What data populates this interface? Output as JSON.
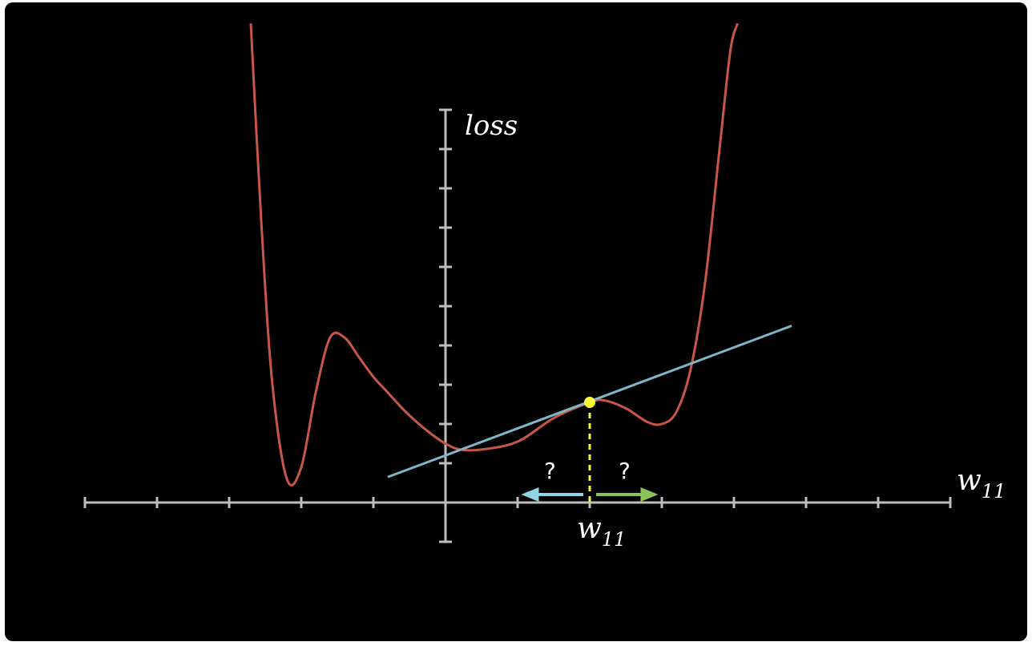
{
  "labels": {
    "y_axis": "loss",
    "x_axis": "w",
    "x_axis_sub": "11",
    "point": "w",
    "point_sub": "11",
    "question_left": "?",
    "question_right": "?"
  },
  "colors": {
    "background": "#000000",
    "curve": "#c9564a",
    "tangent": "#7fb6c9",
    "axis": "#bdbdbd",
    "point": "#ffff33",
    "arrow_left": "#8fd3e6",
    "arrow_right": "#8bc35a"
  },
  "chart_data": {
    "type": "line",
    "xlabel": "w11",
    "ylabel": "loss",
    "x_ticks": [
      -5,
      -4,
      -3,
      -2,
      -1,
      0,
      1,
      2,
      3,
      4,
      5,
      6,
      7
    ],
    "y_ticks": [
      1,
      2,
      3,
      4,
      5,
      6,
      7,
      8,
      9,
      10
    ],
    "curve": {
      "x": [
        -2.7,
        -2.55,
        -2.4,
        -2.2,
        -2.0,
        -1.8,
        -1.6,
        -1.4,
        -1.2,
        -1.0,
        -0.8,
        -0.6,
        -0.4,
        -0.2,
        0.0,
        0.2,
        0.5,
        1.0,
        1.5,
        2.0,
        2.2,
        2.5,
        2.8,
        3.0,
        3.2,
        3.4,
        3.6,
        3.8,
        3.95,
        4.05
      ],
      "y": [
        12.2,
        7.0,
        3.0,
        0.6,
        0.9,
        2.8,
        4.2,
        4.2,
        3.7,
        3.2,
        2.8,
        2.4,
        2.05,
        1.75,
        1.5,
        1.35,
        1.35,
        1.55,
        2.15,
        2.55,
        2.6,
        2.4,
        2.05,
        2.0,
        2.3,
        3.4,
        5.6,
        9.0,
        11.5,
        12.2
      ]
    },
    "tangent": {
      "x": [
        -0.8,
        4.8
      ],
      "y": [
        0.65,
        4.5
      ]
    },
    "point": {
      "x": 2.0,
      "y": 2.55
    },
    "arrows": [
      {
        "from": 2.0,
        "to": 1.05,
        "label": "?"
      },
      {
        "from": 2.0,
        "to": 2.95,
        "label": "?"
      }
    ]
  }
}
